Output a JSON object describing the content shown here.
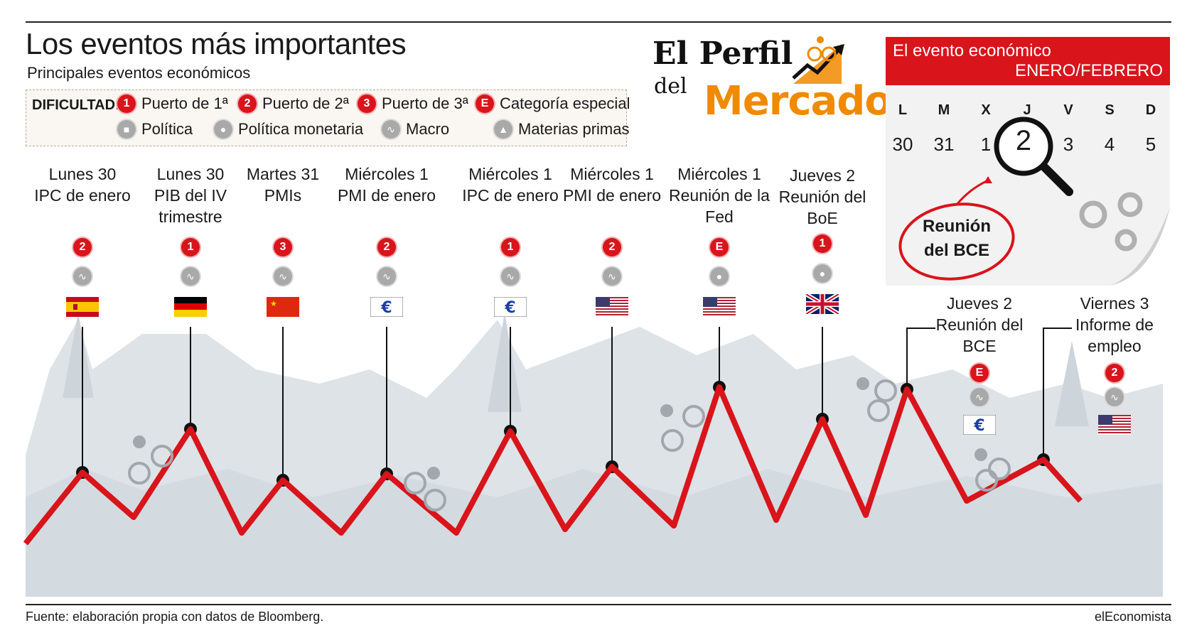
{
  "title": "Los eventos más importantes",
  "subtitle": "Principales eventos económicos",
  "legend": {
    "heading": "DIFICULTAD:",
    "difficulty": [
      {
        "badge": "1",
        "label": "Puerto de 1ª"
      },
      {
        "badge": "2",
        "label": "Puerto de 2ª"
      },
      {
        "badge": "3",
        "label": "Puerto de 3ª"
      },
      {
        "badge": "E",
        "label": "Categoría especial"
      }
    ],
    "categories": [
      {
        "icon": "politics-icon",
        "label": "Política"
      },
      {
        "icon": "monetary-policy-icon",
        "label": "Política monetaria"
      },
      {
        "icon": "macro-icon",
        "label": "Macro"
      },
      {
        "icon": "commodities-icon",
        "label": "Materias primas"
      }
    ]
  },
  "brand": {
    "line1": "El Perfil",
    "line2": "del",
    "line3": "Mercado"
  },
  "calendar": {
    "header": "El evento económico",
    "period": "ENERO/FEBRERO",
    "weekdays": [
      "L",
      "M",
      "X",
      "J",
      "V",
      "S",
      "D"
    ],
    "days": [
      "30",
      "31",
      "1",
      "2",
      "3",
      "4",
      "5"
    ],
    "highlight": "2",
    "note_line1": "Reunión",
    "note_line2": "del BCE"
  },
  "events": [
    {
      "day": "Lunes 30",
      "name": "IPC de enero",
      "difficulty": "2",
      "category": "macro-icon",
      "flag": "flag-spain-icon"
    },
    {
      "day": "Lunes 30",
      "name": "PIB del IV trimestre",
      "difficulty": "1",
      "category": "macro-icon",
      "flag": "flag-germany-icon"
    },
    {
      "day": "Martes 31",
      "name": "PMIs",
      "difficulty": "3",
      "category": "macro-icon",
      "flag": "flag-china-icon"
    },
    {
      "day": "Miércoles 1",
      "name": "PMI de enero",
      "difficulty": "2",
      "category": "macro-icon",
      "flag": "flag-eurozone-icon"
    },
    {
      "day": "Miércoles 1",
      "name": "IPC de enero",
      "difficulty": "1",
      "category": "macro-icon",
      "flag": "flag-eurozone-icon"
    },
    {
      "day": "Miércoles 1",
      "name": "PMI de enero",
      "difficulty": "2",
      "category": "macro-icon",
      "flag": "flag-usa-icon"
    },
    {
      "day": "Miércoles 1",
      "name": "Reunión de la Fed",
      "difficulty": "E",
      "category": "monetary-policy-icon",
      "flag": "flag-usa-icon"
    },
    {
      "day": "Jueves 2",
      "name": "Reunión del BoE",
      "difficulty": "1",
      "category": "monetary-policy-icon",
      "flag": "flag-uk-icon"
    },
    {
      "day": "Jueves 2",
      "name": "Reunión del BCE",
      "difficulty": "E",
      "category": "macro-icon",
      "flag": "flag-eurozone-icon"
    },
    {
      "day": "Viernes 3",
      "name": "Informe de empleo",
      "difficulty": "2",
      "category": "macro-icon",
      "flag": "flag-usa-icon"
    }
  ],
  "colors": {
    "accent": "#d9141b",
    "brand_orange": "#f08a00",
    "mountain": "#dde3e7",
    "icon_grey": "#a9a9a9"
  },
  "footer": {
    "source": "Fuente: elaboración propia con datos de Bloomberg.",
    "credit": "elEconomista"
  }
}
